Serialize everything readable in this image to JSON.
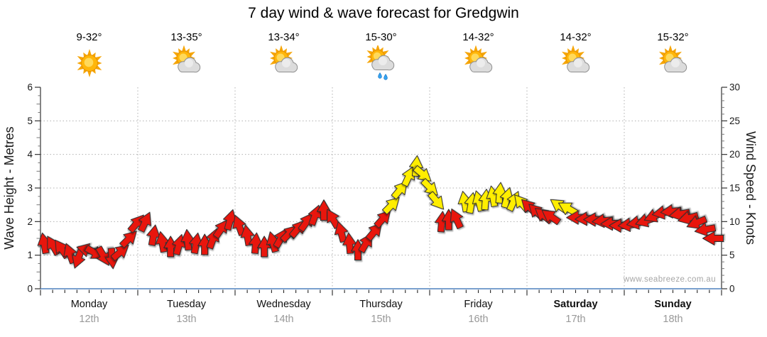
{
  "title": "7 day wind & wave forecast for Gredgwin",
  "watermark": "www.seabreeze.com.au",
  "left_axis": {
    "title": "Wave Height - Metres",
    "ticks": [
      0,
      1,
      2,
      3,
      4,
      5,
      6
    ],
    "range": [
      0,
      6
    ]
  },
  "right_axis": {
    "title": "Wind Speed - Knots",
    "ticks": [
      0,
      5,
      10,
      15,
      20,
      25,
      30
    ],
    "range": [
      0,
      30
    ]
  },
  "forecast_days": [
    {
      "name": "Monday",
      "date": "12th",
      "temp": "9-32°",
      "icon": "sunny",
      "weekend": false
    },
    {
      "name": "Tuesday",
      "date": "13th",
      "temp": "13-35°",
      "icon": "partly-cloudy",
      "weekend": false
    },
    {
      "name": "Wednesday",
      "date": "14th",
      "temp": "13-34°",
      "icon": "partly-cloudy",
      "weekend": false
    },
    {
      "name": "Thursday",
      "date": "15th",
      "temp": "15-30°",
      "icon": "showers",
      "weekend": false
    },
    {
      "name": "Friday",
      "date": "16th",
      "temp": "14-32°",
      "icon": "partly-cloudy",
      "weekend": false
    },
    {
      "name": "Saturday",
      "date": "17th",
      "temp": "14-32°",
      "icon": "partly-cloudy",
      "weekend": true
    },
    {
      "name": "Sunday",
      "date": "18th",
      "temp": "15-32°",
      "icon": "partly-cloudy",
      "weekend": true
    }
  ],
  "chart_data": {
    "type": "wind-arrows",
    "title": "7 day wind & wave forecast for Gredgwin",
    "x_categories": [
      "Monday 12th",
      "Tuesday 13th",
      "Wednesday 14th",
      "Thursday 15th",
      "Friday 16th",
      "Saturday 17th",
      "Sunday 18th"
    ],
    "hours_span": 168,
    "wave_ylim": [
      0,
      6
    ],
    "wind_ylim": [
      0,
      30
    ],
    "grid": "dotted, horizontal every 5 knots, vertical at day boundaries",
    "legend": "arrow color encodes wind strength band: red = lighter, yellow = stronger; arrow rotation = wind direction (0 = up, 90 = right, clockwise)",
    "arrows_format": [
      "hours_from_start",
      "knots",
      "direction_deg",
      "color_key"
    ],
    "arrows": [
      [
        0.9,
        6.8,
        -10,
        "r"
      ],
      [
        3.0,
        6.5,
        -30,
        "r"
      ],
      [
        5.1,
        6.0,
        -35,
        "r"
      ],
      [
        7.2,
        5.3,
        -20,
        "r"
      ],
      [
        9.3,
        4.5,
        -160,
        "r"
      ],
      [
        11.4,
        5.8,
        -75,
        "r"
      ],
      [
        13.5,
        5.3,
        120,
        "r"
      ],
      [
        15.6,
        4.8,
        150,
        "r"
      ],
      [
        17.7,
        4.5,
        175,
        "r"
      ],
      [
        19.8,
        5.5,
        50,
        "r"
      ],
      [
        21.9,
        7.5,
        45,
        "r"
      ],
      [
        23.8,
        9.8,
        40,
        "r"
      ],
      [
        25.9,
        10.0,
        25,
        "r"
      ],
      [
        27.9,
        8.0,
        10,
        "r"
      ],
      [
        30.0,
        7.0,
        -10,
        "r"
      ],
      [
        32.1,
        6.3,
        0,
        "r"
      ],
      [
        34.2,
        6.6,
        15,
        "r"
      ],
      [
        36.3,
        7.3,
        -5,
        "r"
      ],
      [
        38.4,
        6.8,
        10,
        "r"
      ],
      [
        40.5,
        6.6,
        0,
        "r"
      ],
      [
        42.6,
        7.5,
        20,
        "r"
      ],
      [
        44.7,
        9.0,
        35,
        "r"
      ],
      [
        46.8,
        10.3,
        15,
        "r"
      ],
      [
        48.9,
        9.5,
        -20,
        "r"
      ],
      [
        51.0,
        8.0,
        -10,
        "r"
      ],
      [
        53.1,
        6.8,
        5,
        "r"
      ],
      [
        55.2,
        6.3,
        0,
        "r"
      ],
      [
        57.3,
        7.0,
        -15,
        "r"
      ],
      [
        59.4,
        7.6,
        30,
        "r"
      ],
      [
        61.5,
        8.3,
        45,
        "r"
      ],
      [
        63.6,
        9.0,
        40,
        "r"
      ],
      [
        65.7,
        10.0,
        35,
        "r"
      ],
      [
        67.8,
        11.0,
        20,
        "r"
      ],
      [
        69.9,
        11.7,
        0,
        "r"
      ],
      [
        72.0,
        10.5,
        -30,
        "r"
      ],
      [
        74.1,
        8.5,
        -15,
        "r"
      ],
      [
        76.2,
        6.8,
        -5,
        "r"
      ],
      [
        78.3,
        5.8,
        0,
        "r"
      ],
      [
        80.4,
        6.9,
        30,
        "r"
      ],
      [
        82.5,
        8.6,
        40,
        "r"
      ],
      [
        84.6,
        10.5,
        42,
        "r"
      ],
      [
        86.7,
        12.5,
        45,
        "y"
      ],
      [
        88.8,
        14.8,
        40,
        "y"
      ],
      [
        90.9,
        16.8,
        25,
        "y"
      ],
      [
        92.7,
        18.3,
        5,
        "y"
      ],
      [
        94.4,
        17.0,
        130,
        "y"
      ],
      [
        96.2,
        15.0,
        135,
        "y"
      ],
      [
        97.8,
        13.0,
        140,
        "y"
      ],
      [
        99.0,
        10.0,
        5,
        "r"
      ],
      [
        100.7,
        10.3,
        0,
        "r"
      ],
      [
        102.5,
        10.5,
        -25,
        "r"
      ],
      [
        104.6,
        13.0,
        -10,
        "y"
      ],
      [
        106.3,
        12.8,
        10,
        "y"
      ],
      [
        108.1,
        13.1,
        -15,
        "y"
      ],
      [
        109.8,
        13.3,
        5,
        "y"
      ],
      [
        111.6,
        13.8,
        -10,
        "y"
      ],
      [
        113.3,
        14.3,
        5,
        "y"
      ],
      [
        115.1,
        13.6,
        15,
        "y"
      ],
      [
        116.8,
        13.1,
        25,
        "y"
      ],
      [
        118.6,
        12.8,
        -40,
        "y"
      ],
      [
        120.5,
        12.2,
        -45,
        "r"
      ],
      [
        122.3,
        11.5,
        -45,
        "r"
      ],
      [
        124.0,
        11.0,
        -50,
        "r"
      ],
      [
        125.8,
        10.8,
        -55,
        "r"
      ],
      [
        127.9,
        12.4,
        -55,
        "y"
      ],
      [
        130.0,
        12.0,
        -60,
        "y"
      ],
      [
        132.3,
        10.6,
        -90,
        "r"
      ],
      [
        134.4,
        10.4,
        -92,
        "r"
      ],
      [
        136.5,
        10.3,
        -90,
        "r"
      ],
      [
        138.6,
        10.1,
        -95,
        "r"
      ],
      [
        140.7,
        9.7,
        -92,
        "r"
      ],
      [
        142.8,
        9.4,
        -90,
        "r"
      ],
      [
        145.0,
        9.5,
        -95,
        "r"
      ],
      [
        147.1,
        9.8,
        -100,
        "r"
      ],
      [
        149.2,
        10.1,
        -108,
        "r"
      ],
      [
        151.3,
        10.8,
        -112,
        "r"
      ],
      [
        153.4,
        11.3,
        -100,
        "r"
      ],
      [
        155.5,
        11.5,
        -95,
        "r"
      ],
      [
        157.6,
        11.1,
        -100,
        "r"
      ],
      [
        159.7,
        10.5,
        -105,
        "r"
      ],
      [
        161.8,
        9.8,
        -112,
        "r"
      ],
      [
        163.9,
        8.8,
        -100,
        "r"
      ],
      [
        165.9,
        7.5,
        -90,
        "r"
      ]
    ]
  },
  "colors": {
    "arrow_red": "#e8120c",
    "arrow_yellow": "#ffee00",
    "arrow_outline": "#2e2e2e",
    "bottom_axis": "#4f81bd",
    "grid": "#b0b0b0",
    "date_label": "#999999",
    "tick_label": "#1a1a1a"
  }
}
